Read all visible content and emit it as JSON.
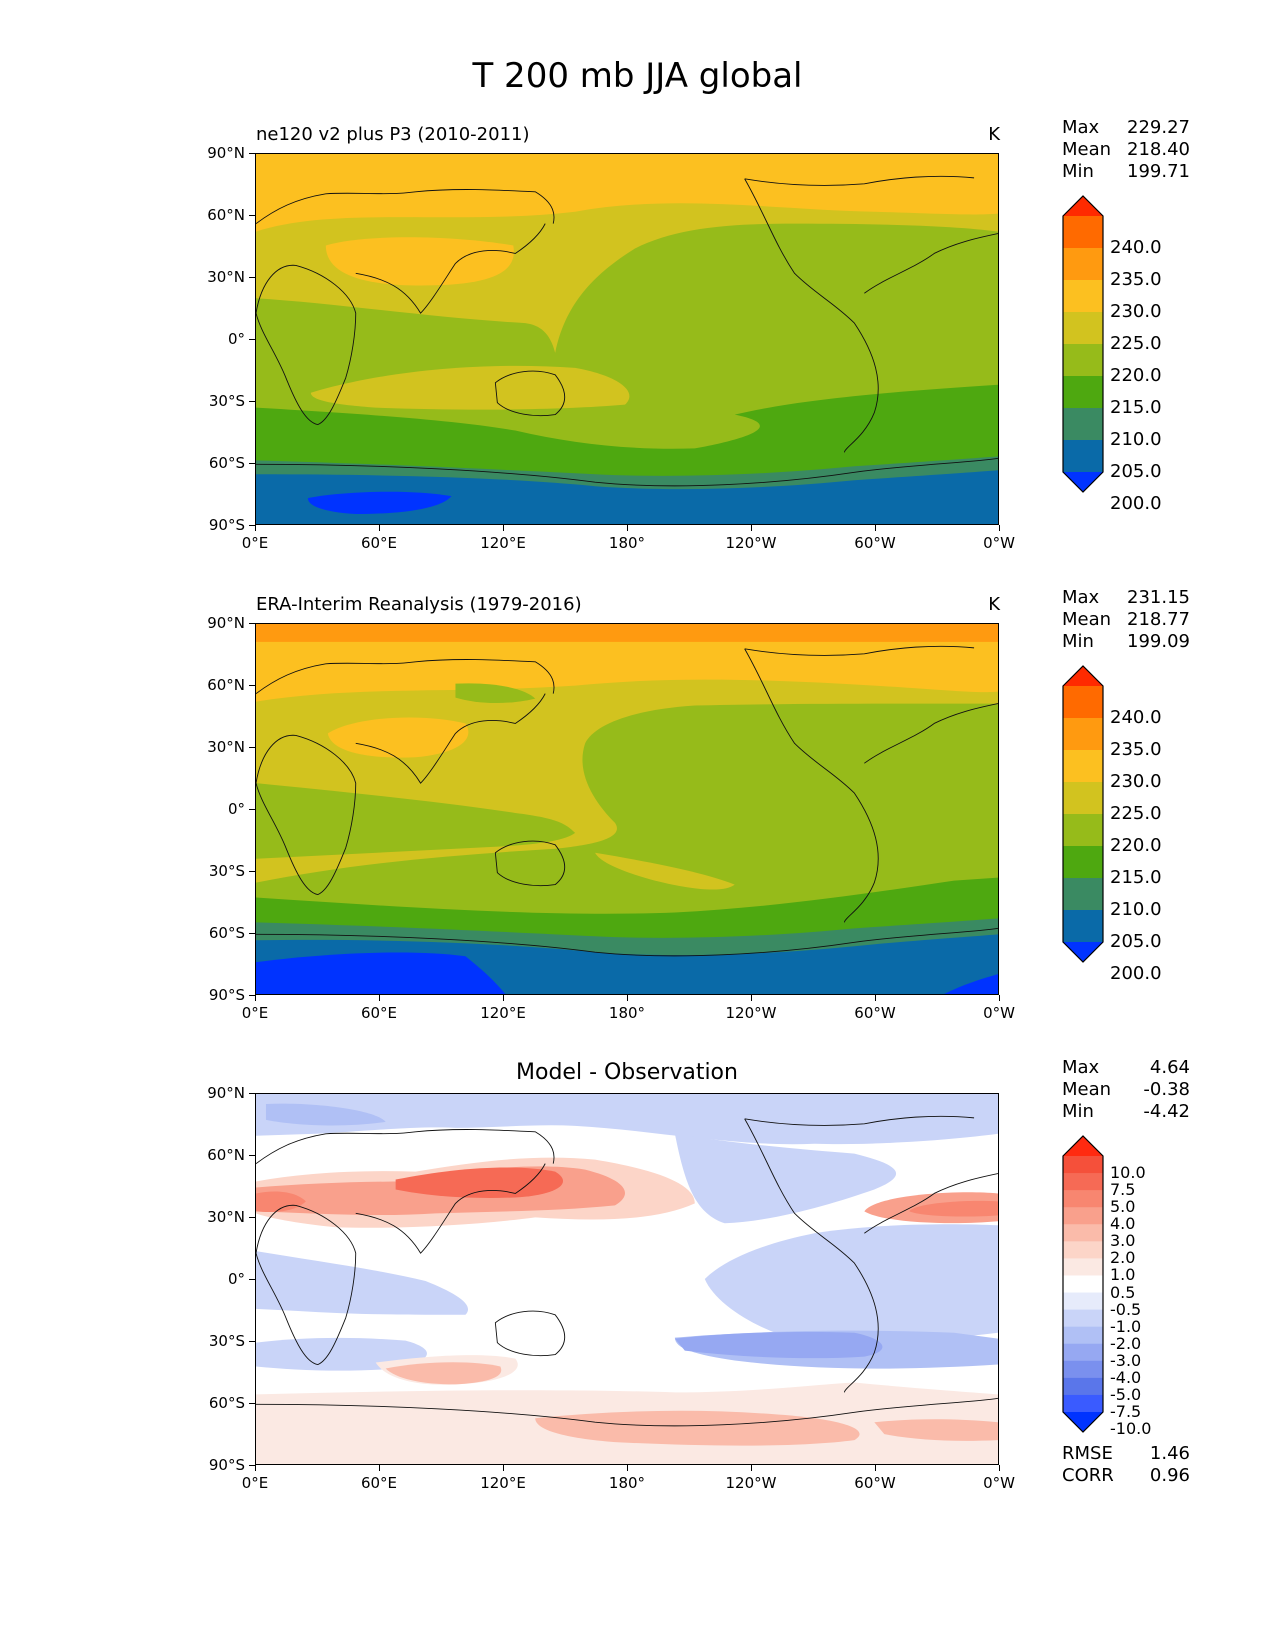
{
  "figure_title": "T 200 mb JJA global",
  "axis": {
    "lat_ticks": [
      "90°N",
      "60°N",
      "30°N",
      "0°",
      "30°S",
      "60°S",
      "90°S"
    ],
    "lon_ticks": [
      "0°E",
      "60°E",
      "120°E",
      "180°",
      "120°W",
      "60°W",
      "0°W"
    ]
  },
  "panels": [
    {
      "title_left": "ne120 v2 plus P3 (2010-2011)",
      "units": "K",
      "stats": {
        "max_label": "Max",
        "max": "229.27",
        "mean_label": "Mean",
        "mean": "218.40",
        "min_label": "Min",
        "min": "199.71"
      },
      "colorbar": {
        "levels": [
          "240.0",
          "235.0",
          "230.0",
          "225.0",
          "220.0",
          "215.0",
          "210.0",
          "205.0",
          "200.0"
        ],
        "colors": [
          "#ff2a00",
          "#ff6a00",
          "#ff9a10",
          "#fcc020",
          "#d2c31f",
          "#96bb1a",
          "#4ea810",
          "#3a8a62",
          "#0a6aa8",
          "#0033ff"
        ]
      }
    },
    {
      "title_left": "ERA-Interim Reanalysis (1979-2016)",
      "units": "K",
      "stats": {
        "max_label": "Max",
        "max": "231.15",
        "mean_label": "Mean",
        "mean": "218.77",
        "min_label": "Min",
        "min": "199.09"
      },
      "colorbar": {
        "levels": [
          "240.0",
          "235.0",
          "230.0",
          "225.0",
          "220.0",
          "215.0",
          "210.0",
          "205.0",
          "200.0"
        ],
        "colors": [
          "#ff2a00",
          "#ff6a00",
          "#ff9a10",
          "#fcc020",
          "#d2c31f",
          "#96bb1a",
          "#4ea810",
          "#3a8a62",
          "#0a6aa8",
          "#0033ff"
        ]
      }
    },
    {
      "title_center": "Model - Observation",
      "stats": {
        "max_label": "Max",
        "max": "4.64",
        "mean_label": "Mean",
        "mean": "-0.38",
        "min_label": "Min",
        "min": "-4.42"
      },
      "colorbar": {
        "levels": [
          "10.0",
          "7.5",
          "5.0",
          "4.0",
          "3.0",
          "2.0",
          "1.0",
          "0.5",
          "-0.5",
          "-1.0",
          "-2.0",
          "-3.0",
          "-4.0",
          "-5.0",
          "-7.5",
          "-10.0"
        ],
        "colors": [
          "#ff2a10",
          "#f5503a",
          "#f66a55",
          "#f88670",
          "#f9a08c",
          "#fabbaa",
          "#fcd5c8",
          "#fbe9e3",
          "#ffffff",
          "#e6ebfb",
          "#c9d4f8",
          "#b0c0f5",
          "#96a8f2",
          "#7a90ee",
          "#5a76ea",
          "#3a5bff",
          "#0033ff"
        ]
      },
      "metrics": {
        "rmse_label": "RMSE",
        "rmse": "1.46",
        "corr_label": "CORR",
        "corr": "0.96"
      }
    }
  ]
}
